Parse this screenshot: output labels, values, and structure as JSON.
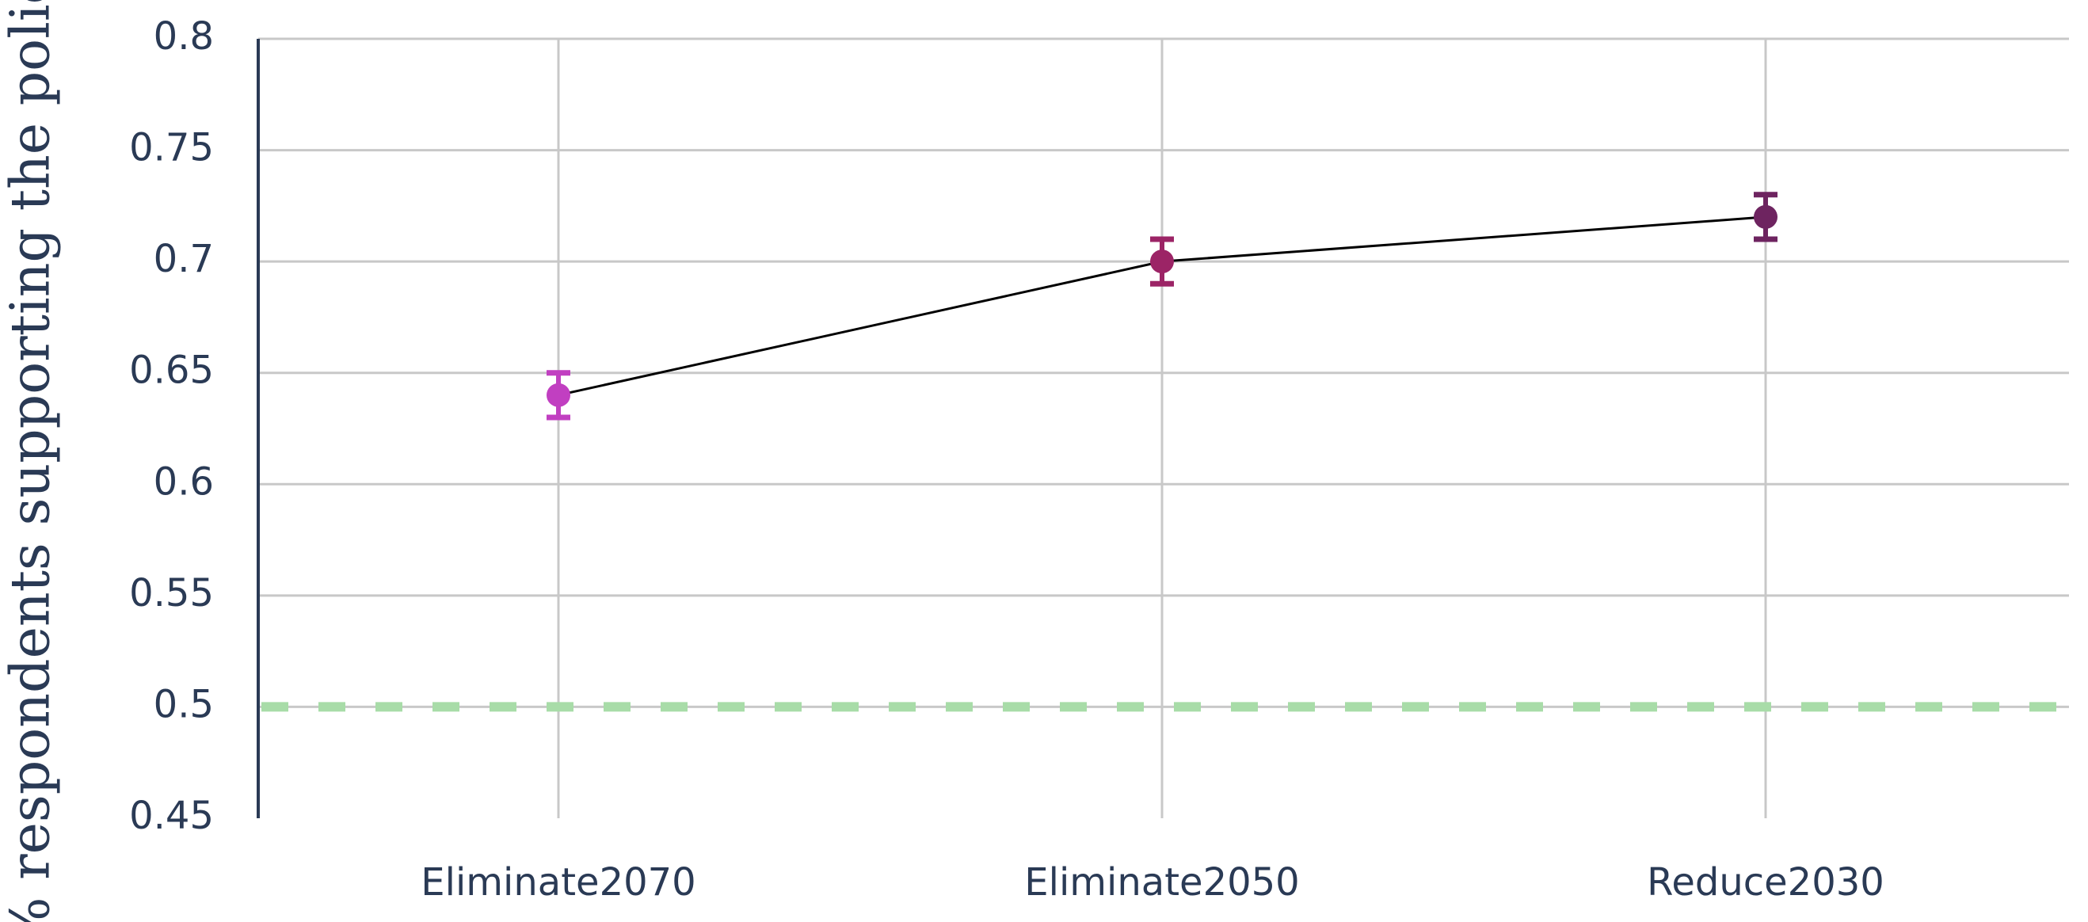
{
  "chart_data": {
    "type": "line",
    "title": "",
    "xlabel": "",
    "ylabel": "% respondents supporting the policy",
    "categories": [
      "Eliminate2070",
      "Eliminate2050",
      "Reduce2030"
    ],
    "series": [
      {
        "values": [
          0.64,
          0.7,
          0.72
        ],
        "error_low": [
          0.63,
          0.69,
          0.71
        ],
        "error_high": [
          0.65,
          0.71,
          0.73
        ],
        "point_colors": [
          "#c13fc1",
          "#9c2466",
          "#6e2460"
        ]
      }
    ],
    "reference_line": {
      "y": 0.5,
      "style": "dashed",
      "color": "#a8dca8"
    },
    "ylim": [
      0.45,
      0.8
    ],
    "yticks": [
      0.45,
      0.5,
      0.55,
      0.6,
      0.65,
      0.7,
      0.75,
      0.8
    ],
    "ytick_labels": [
      "0.45",
      "0.5",
      "0.55",
      "0.6",
      "0.65",
      "0.7",
      "0.75",
      "0.8"
    ],
    "grid": true,
    "line_color": "#000000"
  }
}
